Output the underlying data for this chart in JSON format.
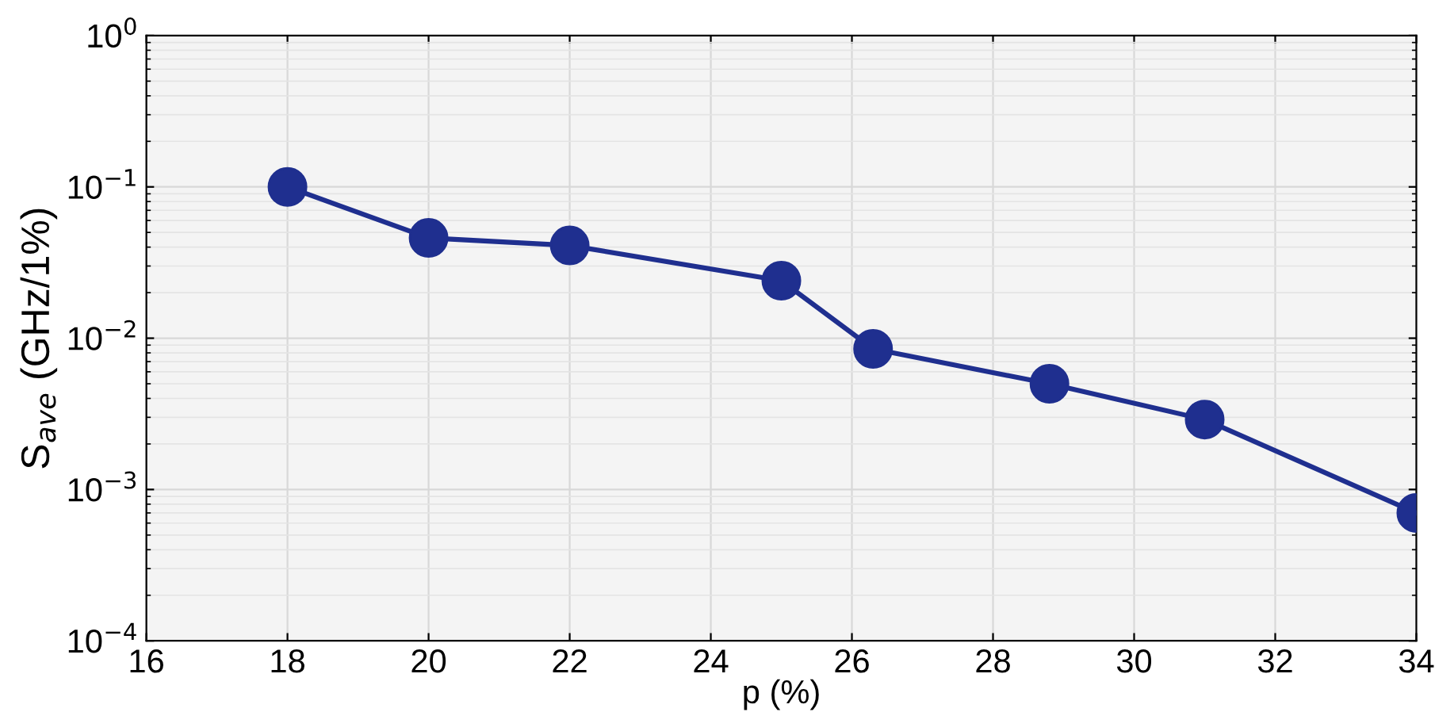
{
  "chart_data": {
    "type": "line",
    "xlabel": "p (%)",
    "ylabel": "S$_{ave}$ (GHz/1%)",
    "x": [
      18,
      20,
      22,
      25,
      26.3,
      28.8,
      31,
      34
    ],
    "series": [
      {
        "color": "#1f2f8f",
        "values": [
          0.1,
          0.046,
          0.041,
          0.024,
          0.0085,
          0.005,
          0.0029,
          0.0007
        ]
      }
    ],
    "log": "y",
    "xlim": [
      16,
      34
    ],
    "xticks": [
      16,
      18,
      20,
      22,
      24,
      26,
      28,
      30,
      32,
      34
    ],
    "ylim": [
      0.0001,
      1
    ],
    "yticks": [
      {
        "value": 0.0001,
        "label": "10$^{−4}$"
      },
      {
        "value": 0.001,
        "label": "10$^{−3}$"
      },
      {
        "value": 0.01,
        "label": "10$^{−2}$"
      },
      {
        "value": 0.1,
        "label": "10$^{−1}$"
      },
      {
        "value": 1,
        "label": "10$^{0}$"
      }
    ],
    "grid": true,
    "marker": "circle",
    "line_style": "solid"
  }
}
